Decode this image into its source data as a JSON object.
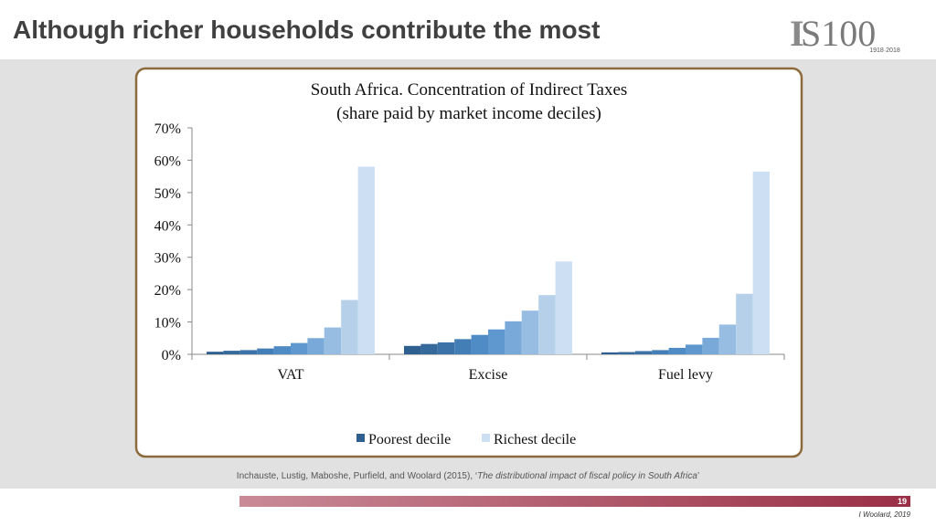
{
  "slide": {
    "title": "Although richer households contribute the most",
    "logo": {
      "mark": "S100",
      "years": "1918·2018"
    },
    "citation": {
      "authors": "Inchauste,  Lustig, Maboshe, Purfield, and Woolard (2015), ‘",
      "title": "The distributional impact of fiscal policy in South Africa",
      "close": "’"
    },
    "page": "19",
    "author": "I Woolard, 2019"
  },
  "chart_data": {
    "type": "bar",
    "title": "South Africa. Concentration of Indirect Taxes",
    "subtitle": "(share paid by market income deciles)",
    "categories": [
      "VAT",
      "Excise",
      "Fuel levy"
    ],
    "series": [
      {
        "color": "#2f5f8f",
        "values": [
          0.8,
          2.6,
          0.6
        ]
      },
      {
        "color": "#35689b",
        "values": [
          1.1,
          3.2,
          0.7
        ]
      },
      {
        "color": "#3b72a8",
        "values": [
          1.3,
          3.7,
          1.0
        ]
      },
      {
        "color": "#447eb7",
        "values": [
          1.8,
          4.7,
          1.3
        ]
      },
      {
        "color": "#4f8bc5",
        "values": [
          2.5,
          6.0,
          2.0
        ]
      },
      {
        "color": "#5f98cf",
        "values": [
          3.5,
          7.7,
          3.0
        ]
      },
      {
        "color": "#78a9d8",
        "values": [
          5.0,
          10.2,
          5.1
        ]
      },
      {
        "color": "#97bde2",
        "values": [
          8.3,
          13.5,
          9.2
        ]
      },
      {
        "color": "#b6d0ea",
        "values": [
          16.8,
          18.3,
          18.7
        ]
      },
      {
        "color": "#cddff2",
        "values": [
          58,
          28.7,
          56.5
        ]
      }
    ],
    "legend": [
      {
        "name": "Poorest decile",
        "color": "#2f5f8f"
      },
      {
        "name": "Richest decile",
        "color": "#cddff2"
      }
    ],
    "ylim": [
      0,
      70
    ],
    "yticks": [
      {
        "value": 0,
        "label": "0%"
      },
      {
        "value": 10,
        "label": "10%"
      },
      {
        "value": 20,
        "label": "20%"
      },
      {
        "value": 30,
        "label": "30%"
      },
      {
        "value": 40,
        "label": "40%"
      },
      {
        "value": 50,
        "label": "50%"
      },
      {
        "value": 60,
        "label": "60%"
      },
      {
        "value": 70,
        "label": "70%"
      }
    ],
    "grid": false
  }
}
